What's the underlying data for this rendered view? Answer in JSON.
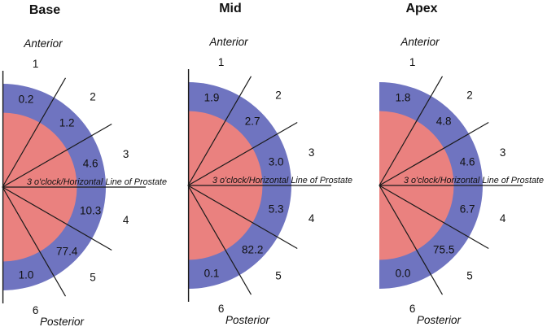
{
  "colors": {
    "ring_blue": "#6f74c0",
    "core_red": "#ea817f",
    "line": "#1a1a1a",
    "background": "#ffffff"
  },
  "axis_label": "3 o'clock/Horizontal Line of Prostate",
  "diagrams": [
    {
      "title": "Base",
      "anterior_label": "Anterior",
      "posterior_label": "Posterior",
      "sector_numbers": [
        "1",
        "2",
        "3",
        "4",
        "5",
        "6"
      ],
      "values": [
        "0.2",
        "1.2",
        "4.6",
        "10.3",
        "77.4",
        "1.0"
      ],
      "has_edge_line": true
    },
    {
      "title": "Mid",
      "anterior_label": "Anterior",
      "posterior_label": "Posterior",
      "sector_numbers": [
        "1",
        "2",
        "3",
        "4",
        "5",
        "6"
      ],
      "values": [
        "1.9",
        "2.7",
        "3.0",
        "5.3",
        "82.2",
        "0.1"
      ],
      "has_edge_line": true
    },
    {
      "title": "Apex",
      "anterior_label": "Anterior",
      "posterior_label": "Posterior",
      "sector_numbers": [
        "1",
        "2",
        "3",
        "4",
        "5",
        "6"
      ],
      "values": [
        "1.8",
        "4.8",
        "4.6",
        "6.7",
        "75.5",
        "0.0"
      ],
      "has_edge_line": false
    }
  ],
  "chart_data": {
    "type": "sector-diagram",
    "title": "",
    "sectors": [
      "1",
      "2",
      "3",
      "4",
      "5",
      "6"
    ],
    "series": [
      {
        "name": "Base",
        "values": [
          0.2,
          1.2,
          4.6,
          10.3,
          77.4,
          1.0
        ]
      },
      {
        "name": "Mid",
        "values": [
          1.9,
          2.7,
          3.0,
          5.3,
          82.2,
          0.1
        ]
      },
      {
        "name": "Apex",
        "values": [
          1.8,
          4.8,
          4.6,
          6.7,
          75.5,
          0.0
        ]
      }
    ],
    "orientation_labels": {
      "top": "Anterior",
      "bottom": "Posterior"
    },
    "reference_line_label": "3 o'clock/Horizontal Line of Prostate",
    "layout": "three half-disk plots, six 30-degree sectors each, values printed in outer ring"
  }
}
